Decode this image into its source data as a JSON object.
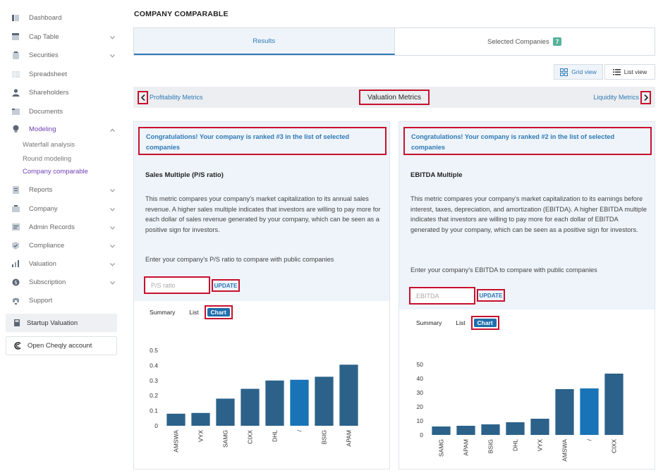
{
  "sidebar": {
    "items": [
      {
        "label": "Dashboard",
        "icon": "dashboard-icon",
        "has_chevron": false
      },
      {
        "label": "Cap Table",
        "icon": "cap-table-icon",
        "has_chevron": true
      },
      {
        "label": "Securities",
        "icon": "securities-icon",
        "has_chevron": true
      },
      {
        "label": "Spreadsheet",
        "icon": "spreadsheet-icon",
        "has_chevron": false
      },
      {
        "label": "Shareholders",
        "icon": "shareholders-icon",
        "has_chevron": false
      },
      {
        "label": "Documents",
        "icon": "documents-icon",
        "has_chevron": false
      },
      {
        "label": "Modeling",
        "icon": "lightbulb-icon",
        "has_chevron": true,
        "active": true
      },
      {
        "label": "Reports",
        "icon": "reports-icon",
        "has_chevron": true
      },
      {
        "label": "Company",
        "icon": "company-icon",
        "has_chevron": true
      },
      {
        "label": "Admin Records",
        "icon": "admin-records-icon",
        "has_chevron": true
      },
      {
        "label": "Compliance",
        "icon": "compliance-icon",
        "has_chevron": true
      },
      {
        "label": "Valuation",
        "icon": "valuation-icon",
        "has_chevron": true
      },
      {
        "label": "Subscription",
        "icon": "subscription-icon",
        "has_chevron": true
      },
      {
        "label": "Support",
        "icon": "support-icon",
        "has_chevron": false
      }
    ],
    "modeling_sub": [
      "Waterfall analysis",
      "Round modeling",
      "Company comparable"
    ],
    "startup_valuation": "Startup Valuation",
    "open_account": "Open Cheqly account"
  },
  "page": {
    "title": "COMPANY COMPARABLE"
  },
  "tabs": {
    "results": "Results",
    "selected": "Selected Companies",
    "selected_count": "7"
  },
  "view_toggle": {
    "grid": "Grid view",
    "list": "List view"
  },
  "metric_nav": {
    "prev": "Profitability Metrics",
    "current": "Valuation Metrics",
    "next": "Liquidity Metrics"
  },
  "card1": {
    "congrats": "Congratulations! Your company is ranked #3 in the list of selected companies",
    "title": "Sales Multiple (P/S ratio)",
    "description": "This metric compares your company's market capitalization to its annual sales revenue. A higher sales multiple indicates that investors are willing to pay more for each dollar of sales revenue generated by your company, which can be seen as a positive sign for investors.",
    "prompt": "Enter your company's P/S ratio to compare with public companies",
    "input_placeholder": "P/S ratio",
    "update": "UPDATE",
    "view_tabs": {
      "summary": "Summary",
      "list": "List",
      "chart": "Chart"
    }
  },
  "card2": {
    "congrats": "Congratulations! Your company is ranked #2 in the list of selected companies",
    "title": "EBITDA Multiple",
    "description": "This metric compares your company's market capitalization to its earnings before interest, taxes, depreciation, and amortization (EBITDA). A higher EBITDA multiple indicates that investors are willing to pay more for each dollar of EBITDA generated by your company, which can be seen as a positive sign for investors.",
    "prompt": "Enter your company's EBITDA to compare with public companies",
    "input_placeholder": "EBITDA",
    "update": "UPDATE",
    "view_tabs": {
      "summary": "Summary",
      "list": "List",
      "chart": "Chart"
    }
  },
  "colors": {
    "bar": "#2c628a",
    "highlight": "#1874b7",
    "accent": "#2f79b5",
    "annotation": "#c8102e",
    "modeling": "#6f3fb5"
  },
  "chart_data": [
    {
      "type": "bar",
      "categories": [
        "AMSWA",
        "VYX",
        "SAMG",
        "CIXX",
        "DHL",
        "/",
        "BSIG",
        "APAM"
      ],
      "values": [
        0.08,
        0.085,
        0.18,
        0.245,
        0.3,
        0.305,
        0.325,
        0.405
      ],
      "highlight_index": 5,
      "yticks": [
        0,
        0.1,
        0.2,
        0.3,
        0.4,
        0.5
      ],
      "ylim": [
        0,
        0.5
      ],
      "title": "",
      "xlabel": "",
      "ylabel": ""
    },
    {
      "type": "bar",
      "categories": [
        "SAMG",
        "APAM",
        "BSIG",
        "DHL",
        "VYX",
        "AMSWA",
        "/",
        "CIXX"
      ],
      "values": [
        6,
        6.5,
        7.5,
        9,
        11.5,
        32.5,
        33,
        43.5
      ],
      "highlight_index": 6,
      "yticks": [
        0,
        10,
        20,
        30,
        40,
        50
      ],
      "ylim": [
        0,
        50
      ],
      "title": "",
      "xlabel": "",
      "ylabel": ""
    }
  ]
}
